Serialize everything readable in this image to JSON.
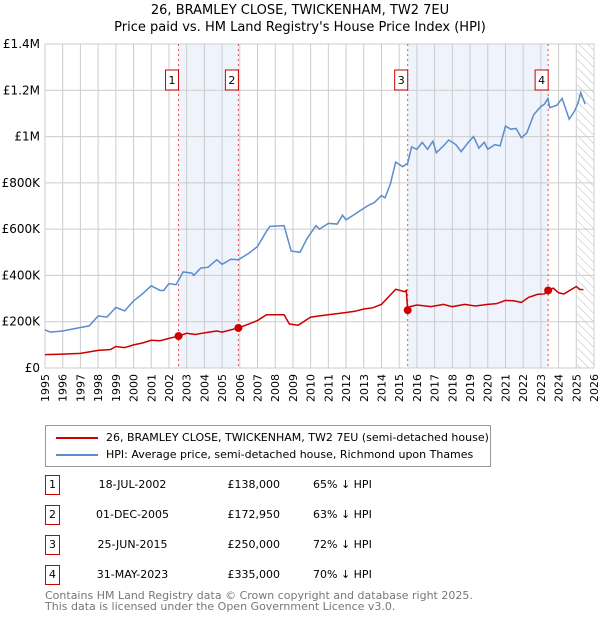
{
  "chart_data": {
    "type": "line",
    "title": "26, BRAMLEY CLOSE, TWICKENHAM, TW2 7EU",
    "subtitle": "Price paid vs. HM Land Registry's House Price Index (HPI)",
    "xlim": [
      1995,
      2026
    ],
    "ylim": [
      0,
      1400000
    ],
    "y_ticks": [
      {
        "v": 0,
        "label": "£0"
      },
      {
        "v": 200000,
        "label": "£200K"
      },
      {
        "v": 400000,
        "label": "£400K"
      },
      {
        "v": 600000,
        "label": "£600K"
      },
      {
        "v": 800000,
        "label": "£800K"
      },
      {
        "v": 1000000,
        "label": "£1M"
      },
      {
        "v": 1200000,
        "label": "£1.2M"
      },
      {
        "v": 1400000,
        "label": "£1.4M"
      }
    ],
    "x_ticks": [
      "1995",
      "1996",
      "1997",
      "1998",
      "1999",
      "2000",
      "2001",
      "2002",
      "2003",
      "2004",
      "2005",
      "2006",
      "2007",
      "2008",
      "2009",
      "2010",
      "2011",
      "2012",
      "2013",
      "2014",
      "2015",
      "2016",
      "2017",
      "2018",
      "2019",
      "2020",
      "2021",
      "2022",
      "2023",
      "2024",
      "2025",
      "2026"
    ],
    "grid": true,
    "projection_start": 2025.05,
    "colors": {
      "property": "#cc0000",
      "hpi": "#5b8ccc",
      "shade": "#eef3fc"
    },
    "series": [
      {
        "name": "26, BRAMLEY CLOSE, TWICKENHAM, TW2 7EU (semi-detached house)",
        "key": "property",
        "points": [
          [
            1995,
            58
          ],
          [
            1996,
            60
          ],
          [
            1997,
            63
          ],
          [
            1998,
            76
          ],
          [
            1998.7,
            80
          ],
          [
            1999,
            93
          ],
          [
            1999.5,
            88
          ],
          [
            2000,
            100
          ],
          [
            2000.5,
            108
          ],
          [
            2001,
            120
          ],
          [
            2001.5,
            118
          ],
          [
            2002,
            128
          ],
          [
            2002.54,
            138
          ],
          [
            2003,
            150
          ],
          [
            2003.5,
            145
          ],
          [
            2004,
            152
          ],
          [
            2004.7,
            160
          ],
          [
            2005,
            155
          ],
          [
            2005.92,
            173
          ],
          [
            2006.5,
            190
          ],
          [
            2007,
            205
          ],
          [
            2007.5,
            230
          ],
          [
            2008.5,
            230
          ],
          [
            2008.8,
            190
          ],
          [
            2009.3,
            185
          ],
          [
            2010,
            220
          ],
          [
            2010.5,
            225
          ],
          [
            2011,
            230
          ],
          [
            2012,
            240
          ],
          [
            2012.5,
            245
          ],
          [
            2013,
            255
          ],
          [
            2013.5,
            260
          ],
          [
            2014,
            275
          ],
          [
            2014.8,
            340
          ],
          [
            2015.3,
            330
          ],
          [
            2015.4,
            335
          ],
          [
            2015.48,
            250
          ],
          [
            2015.6,
            265
          ],
          [
            2016,
            272
          ],
          [
            2016.8,
            265
          ],
          [
            2017.5,
            275
          ],
          [
            2018,
            265
          ],
          [
            2018.7,
            275
          ],
          [
            2019.3,
            268
          ],
          [
            2020,
            275
          ],
          [
            2020.5,
            278
          ],
          [
            2021,
            292
          ],
          [
            2021.5,
            290
          ],
          [
            2021.9,
            283
          ],
          [
            2022.3,
            305
          ],
          [
            2022.8,
            318
          ],
          [
            2023.2,
            320
          ],
          [
            2023.41,
            335
          ],
          [
            2023.7,
            345
          ],
          [
            2024,
            325
          ],
          [
            2024.3,
            320
          ],
          [
            2025,
            352
          ],
          [
            2025.2,
            340
          ],
          [
            2025.4,
            338
          ]
        ]
      },
      {
        "name": "HPI: Average price, semi-detached house, Richmond upon Thames",
        "key": "hpi",
        "points": [
          [
            1995,
            165
          ],
          [
            1995.3,
            155
          ],
          [
            1996,
            160
          ],
          [
            1997,
            175
          ],
          [
            1997.5,
            182
          ],
          [
            1998,
            225
          ],
          [
            1998.5,
            220
          ],
          [
            1999,
            262
          ],
          [
            1999.5,
            247
          ],
          [
            2000,
            290
          ],
          [
            2000.5,
            320
          ],
          [
            2001,
            355
          ],
          [
            2001.5,
            335
          ],
          [
            2001.7,
            335
          ],
          [
            2002,
            365
          ],
          [
            2002.4,
            360
          ],
          [
            2002.8,
            415
          ],
          [
            2003.3,
            410
          ],
          [
            2003.4,
            400
          ],
          [
            2003.8,
            432
          ],
          [
            2004.2,
            435
          ],
          [
            2004.7,
            468
          ],
          [
            2005,
            448
          ],
          [
            2005.5,
            470
          ],
          [
            2005.92,
            468
          ],
          [
            2006.5,
            495
          ],
          [
            2007,
            525
          ],
          [
            2007.5,
            590
          ],
          [
            2007.7,
            612
          ],
          [
            2008.5,
            615
          ],
          [
            2008.9,
            505
          ],
          [
            2009.4,
            500
          ],
          [
            2009.8,
            560
          ],
          [
            2010.3,
            615
          ],
          [
            2010.5,
            600
          ],
          [
            2011,
            625
          ],
          [
            2011.5,
            622
          ],
          [
            2011.8,
            660
          ],
          [
            2012,
            640
          ],
          [
            2012.5,
            665
          ],
          [
            2012.8,
            680
          ],
          [
            2013.2,
            700
          ],
          [
            2013.6,
            715
          ],
          [
            2014,
            745
          ],
          [
            2014.2,
            735
          ],
          [
            2014.5,
            795
          ],
          [
            2014.8,
            890
          ],
          [
            2015.2,
            870
          ],
          [
            2015.48,
            885
          ],
          [
            2015.7,
            955
          ],
          [
            2016,
            945
          ],
          [
            2016.3,
            975
          ],
          [
            2016.6,
            945
          ],
          [
            2016.9,
            980
          ],
          [
            2017.1,
            930
          ],
          [
            2017.5,
            960
          ],
          [
            2017.8,
            985
          ],
          [
            2018.2,
            965
          ],
          [
            2018.5,
            935
          ],
          [
            2018.9,
            975
          ],
          [
            2019.2,
            1000
          ],
          [
            2019.5,
            950
          ],
          [
            2019.8,
            975
          ],
          [
            2020,
            945
          ],
          [
            2020.4,
            965
          ],
          [
            2020.7,
            960
          ],
          [
            2021,
            1045
          ],
          [
            2021.3,
            1032
          ],
          [
            2021.6,
            1035
          ],
          [
            2021.9,
            995
          ],
          [
            2022.2,
            1015
          ],
          [
            2022.6,
            1095
          ],
          [
            2023,
            1130
          ],
          [
            2023.2,
            1140
          ],
          [
            2023.4,
            1165
          ],
          [
            2023.5,
            1125
          ],
          [
            2023.9,
            1135
          ],
          [
            2024.2,
            1165
          ],
          [
            2024.6,
            1075
          ],
          [
            2024.9,
            1110
          ],
          [
            2025.1,
            1145
          ],
          [
            2025.25,
            1190
          ],
          [
            2025.5,
            1140
          ]
        ]
      }
    ],
    "sales": [
      {
        "n": "1",
        "date": "18-JUL-2002",
        "x": 2002.54,
        "price": "£138,000",
        "value": 138,
        "hpi": "65% ↓ HPI"
      },
      {
        "n": "2",
        "date": "01-DEC-2005",
        "x": 2005.92,
        "price": "£172,950",
        "value": 172.95,
        "hpi": "63% ↓ HPI"
      },
      {
        "n": "3",
        "date": "25-JUN-2015",
        "x": 2015.48,
        "price": "£250,000",
        "value": 250,
        "hpi": "72% ↓ HPI"
      },
      {
        "n": "4",
        "date": "31-MAY-2023",
        "x": 2023.41,
        "price": "£335,000",
        "value": 335,
        "hpi": "70% ↓ HPI"
      }
    ],
    "legend_position": "below"
  },
  "footer": {
    "line1": "Contains HM Land Registry data © Crown copyright and database right 2025.",
    "line2": "This data is licensed under the Open Government Licence v3.0."
  }
}
